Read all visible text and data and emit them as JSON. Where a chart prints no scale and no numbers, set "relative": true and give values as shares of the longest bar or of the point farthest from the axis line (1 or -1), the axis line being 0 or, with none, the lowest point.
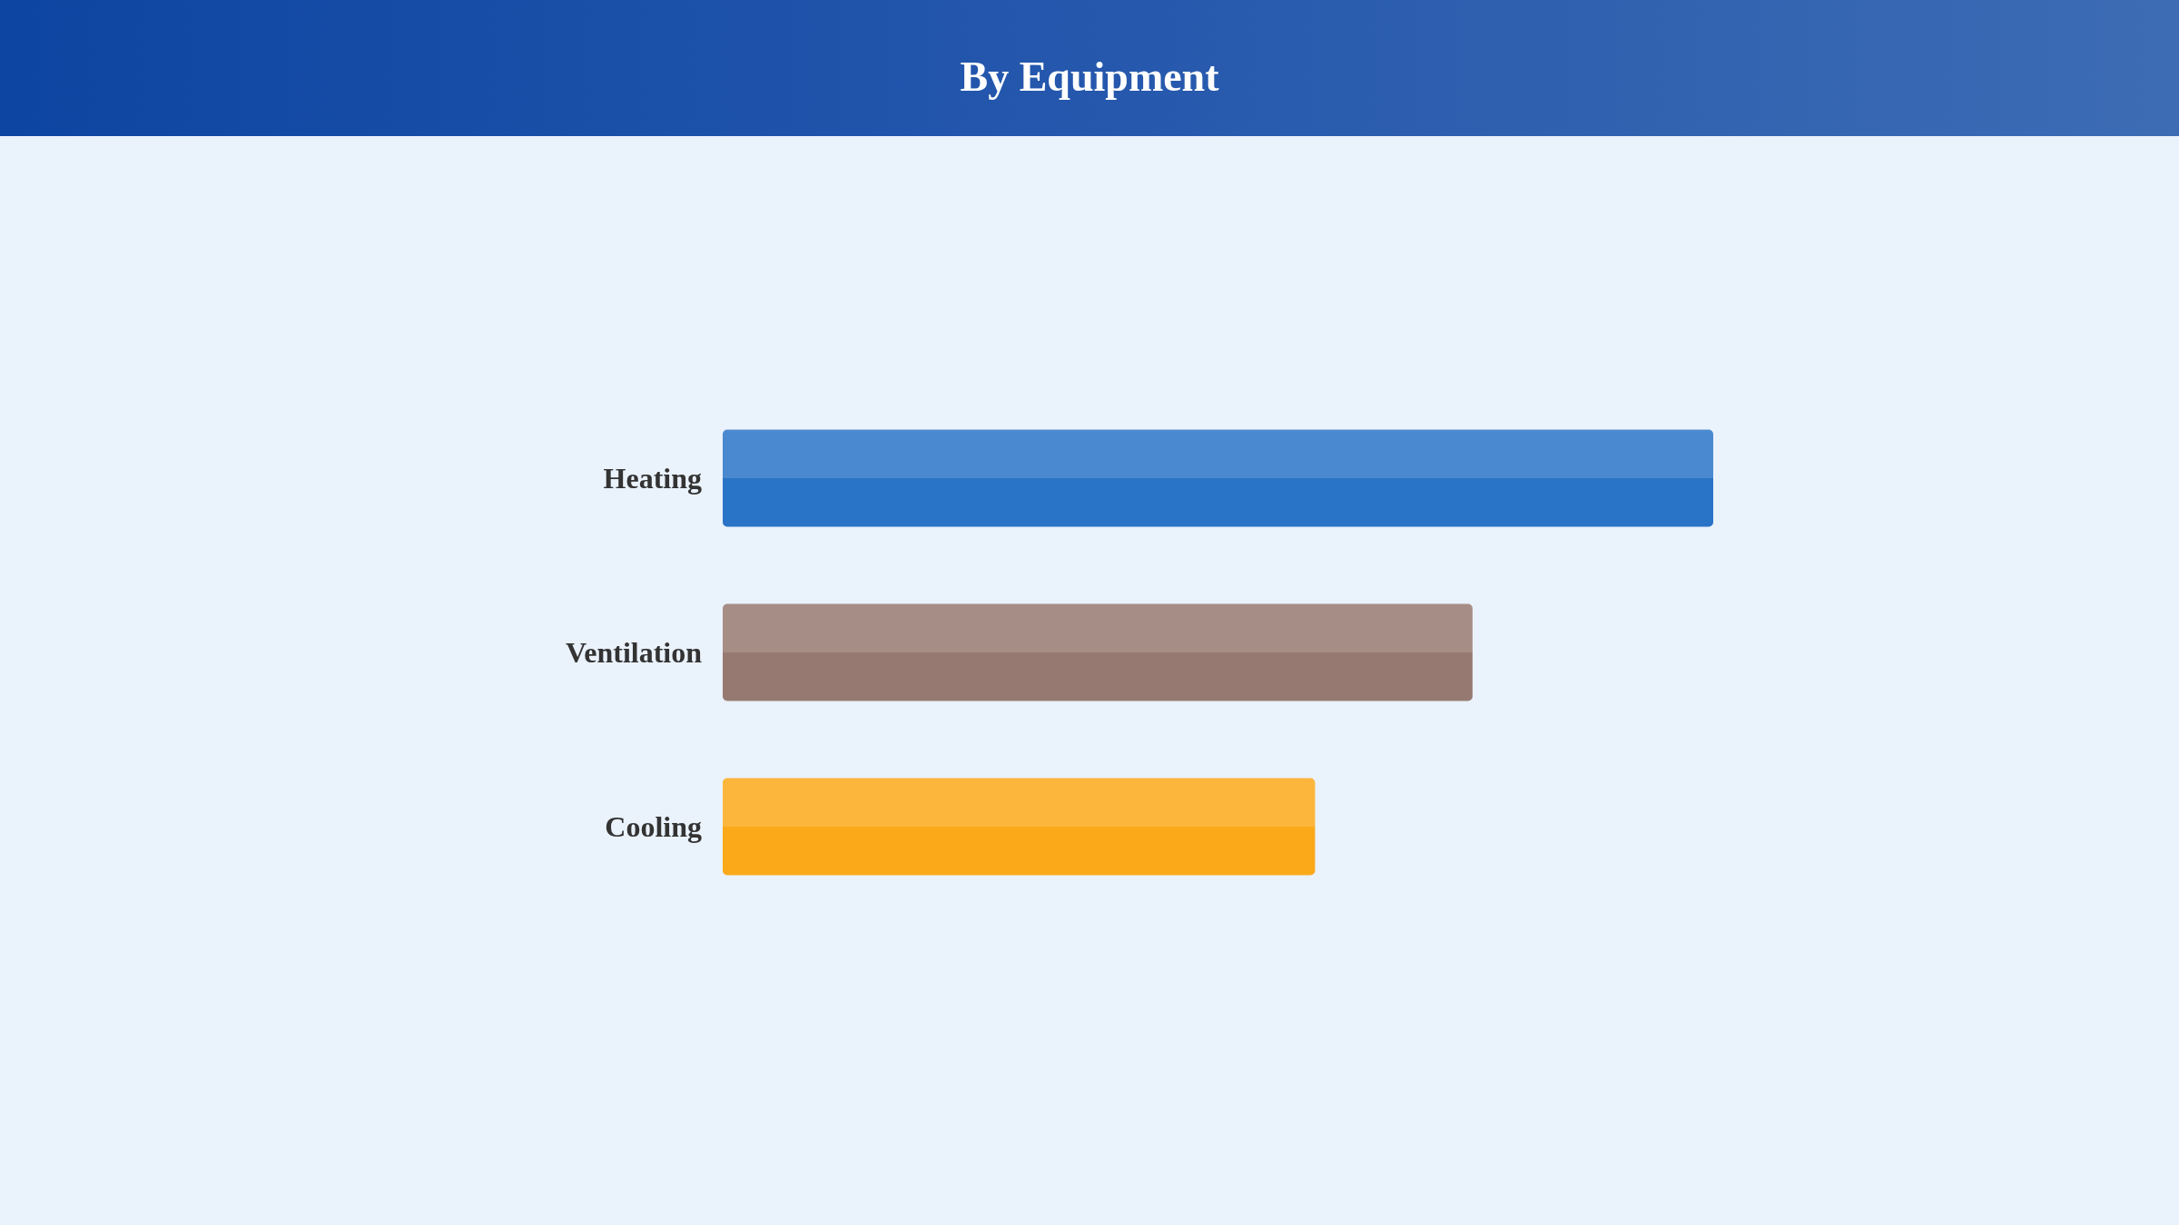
{
  "chart_data": {
    "type": "bar",
    "orientation": "horizontal",
    "relative": true,
    "title": "By Equipment",
    "categories": [
      "Heating",
      "Ventilation",
      "Cooling"
    ],
    "values": [
      1,
      0.757,
      0.598
    ],
    "colors": [
      "#2a74c7",
      "#967a71",
      "#fba919"
    ]
  }
}
